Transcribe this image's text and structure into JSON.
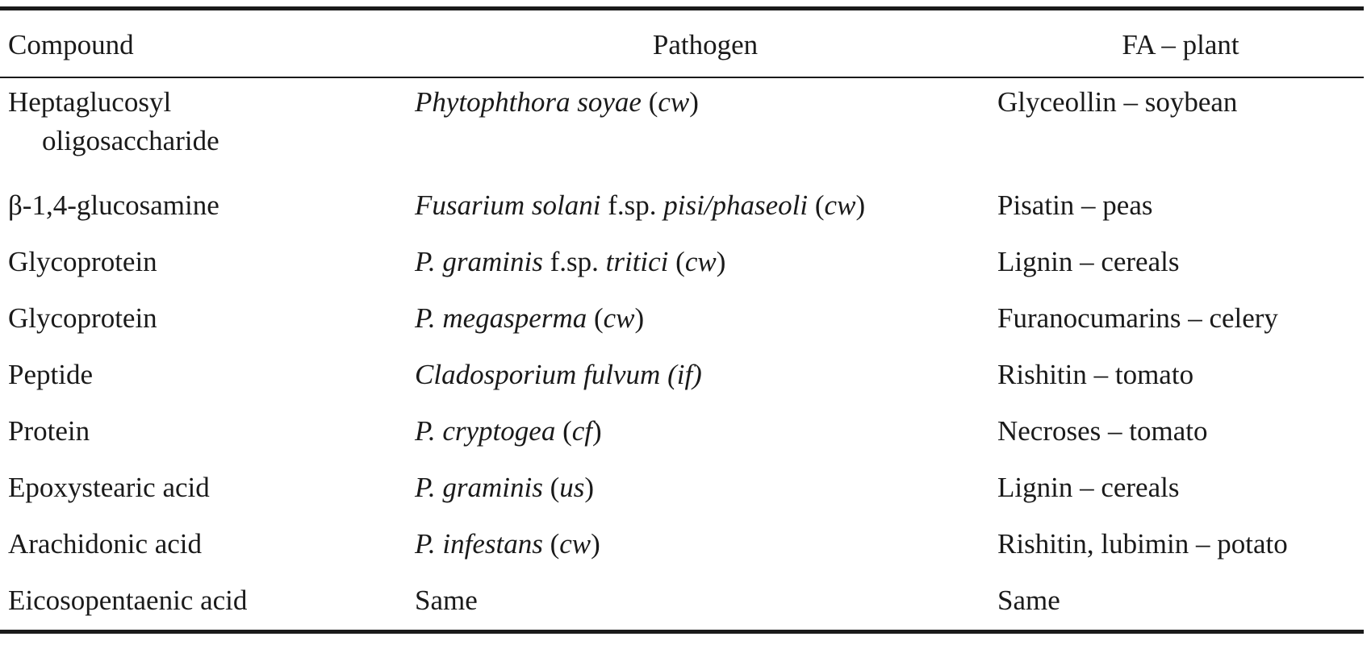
{
  "table": {
    "headers": {
      "compound": "Compound",
      "pathogen": "Pathogen",
      "fa_plant": "FA – plant"
    },
    "rows": [
      {
        "compound_line1": "Heptaglucosyl",
        "compound_line2": "oligosaccharide",
        "pathogen": [
          {
            "text": "Phytophthora soyae",
            "italic": true
          },
          {
            "text": " (",
            "italic": false
          },
          {
            "text": "cw",
            "italic": true
          },
          {
            "text": ")",
            "italic": false
          }
        ],
        "fa_plant": "Glyceollin – soybean"
      },
      {
        "compound": "β-1,4-glucosamine",
        "pathogen": [
          {
            "text": "Fusarium solani",
            "italic": true
          },
          {
            "text": " f.sp. ",
            "italic": false
          },
          {
            "text": "pisi/phaseoli",
            "italic": true
          },
          {
            "text": " (",
            "italic": false
          },
          {
            "text": "cw",
            "italic": true
          },
          {
            "text": ")",
            "italic": false
          }
        ],
        "fa_plant": "Pisatin – peas"
      },
      {
        "compound": "Glycoprotein",
        "pathogen": [
          {
            "text": "P. graminis",
            "italic": true
          },
          {
            "text": " f.sp. ",
            "italic": false
          },
          {
            "text": "tritici",
            "italic": true
          },
          {
            "text": " (",
            "italic": false
          },
          {
            "text": "cw",
            "italic": true
          },
          {
            "text": ")",
            "italic": false
          }
        ],
        "fa_plant": "Lignin – cereals"
      },
      {
        "compound": "Glycoprotein",
        "pathogen": [
          {
            "text": "P. megasperma",
            "italic": true
          },
          {
            "text": " (",
            "italic": false
          },
          {
            "text": "cw",
            "italic": true
          },
          {
            "text": ")",
            "italic": false
          }
        ],
        "fa_plant": "Furanocumarins – celery"
      },
      {
        "compound": "Peptide",
        "pathogen": [
          {
            "text": "Cladosporium fulvum (if)",
            "italic": true
          }
        ],
        "fa_plant": "Rishitin – tomato"
      },
      {
        "compound": "Protein",
        "pathogen": [
          {
            "text": "P. cryptogea",
            "italic": true
          },
          {
            "text": " (",
            "italic": false
          },
          {
            "text": "cf",
            "italic": true
          },
          {
            "text": ")",
            "italic": false
          }
        ],
        "fa_plant": "Necroses – tomato"
      },
      {
        "compound": "Epoxystearic acid",
        "pathogen": [
          {
            "text": "P. graminis",
            "italic": true
          },
          {
            "text": " (",
            "italic": false
          },
          {
            "text": "us",
            "italic": true
          },
          {
            "text": ")",
            "italic": false
          }
        ],
        "fa_plant": "Lignin – cereals"
      },
      {
        "compound": "Arachidonic acid",
        "pathogen": [
          {
            "text": "P. infestans",
            "italic": true
          },
          {
            "text": " (",
            "italic": false
          },
          {
            "text": "cw",
            "italic": true
          },
          {
            "text": ")",
            "italic": false
          }
        ],
        "fa_plant": "Rishitin, lubimin – potato"
      },
      {
        "compound": "Eicosopentaenic acid",
        "pathogen": [
          {
            "text": "Same",
            "italic": false
          }
        ],
        "fa_plant": "Same"
      }
    ]
  }
}
